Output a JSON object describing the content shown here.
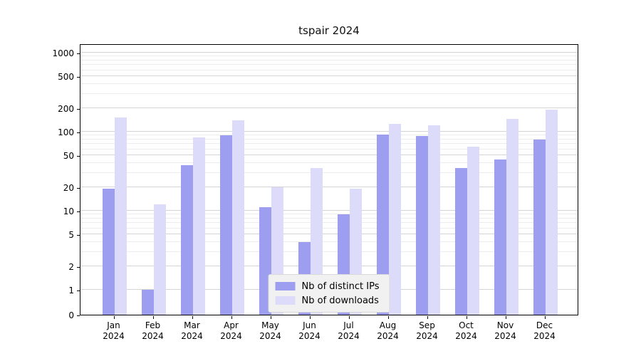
{
  "chart_data": {
    "type": "bar",
    "title": "tspair 2024",
    "categories": [
      "Jan",
      "Feb",
      "Mar",
      "Apr",
      "May",
      "Jun",
      "Jul",
      "Aug",
      "Sep",
      "Oct",
      "Nov",
      "Dec"
    ],
    "year_label": "2024",
    "series": [
      {
        "name": "Nb of distinct IPs",
        "color": "#9e9ef0",
        "values": [
          19,
          1,
          38,
          90,
          11,
          4,
          9,
          92,
          88,
          35,
          45,
          80
        ]
      },
      {
        "name": "Nb of downloads",
        "color": "#dcdcfa",
        "values": [
          150,
          12,
          85,
          140,
          20,
          35,
          19,
          125,
          120,
          65,
          145,
          190
        ]
      }
    ],
    "yticks": [
      0,
      1,
      2,
      5,
      10,
      20,
      50,
      100,
      200,
      500,
      1000
    ],
    "scale": "log",
    "ylim": [
      0,
      1000
    ],
    "grid": true,
    "legend_position": "bottom-center"
  }
}
